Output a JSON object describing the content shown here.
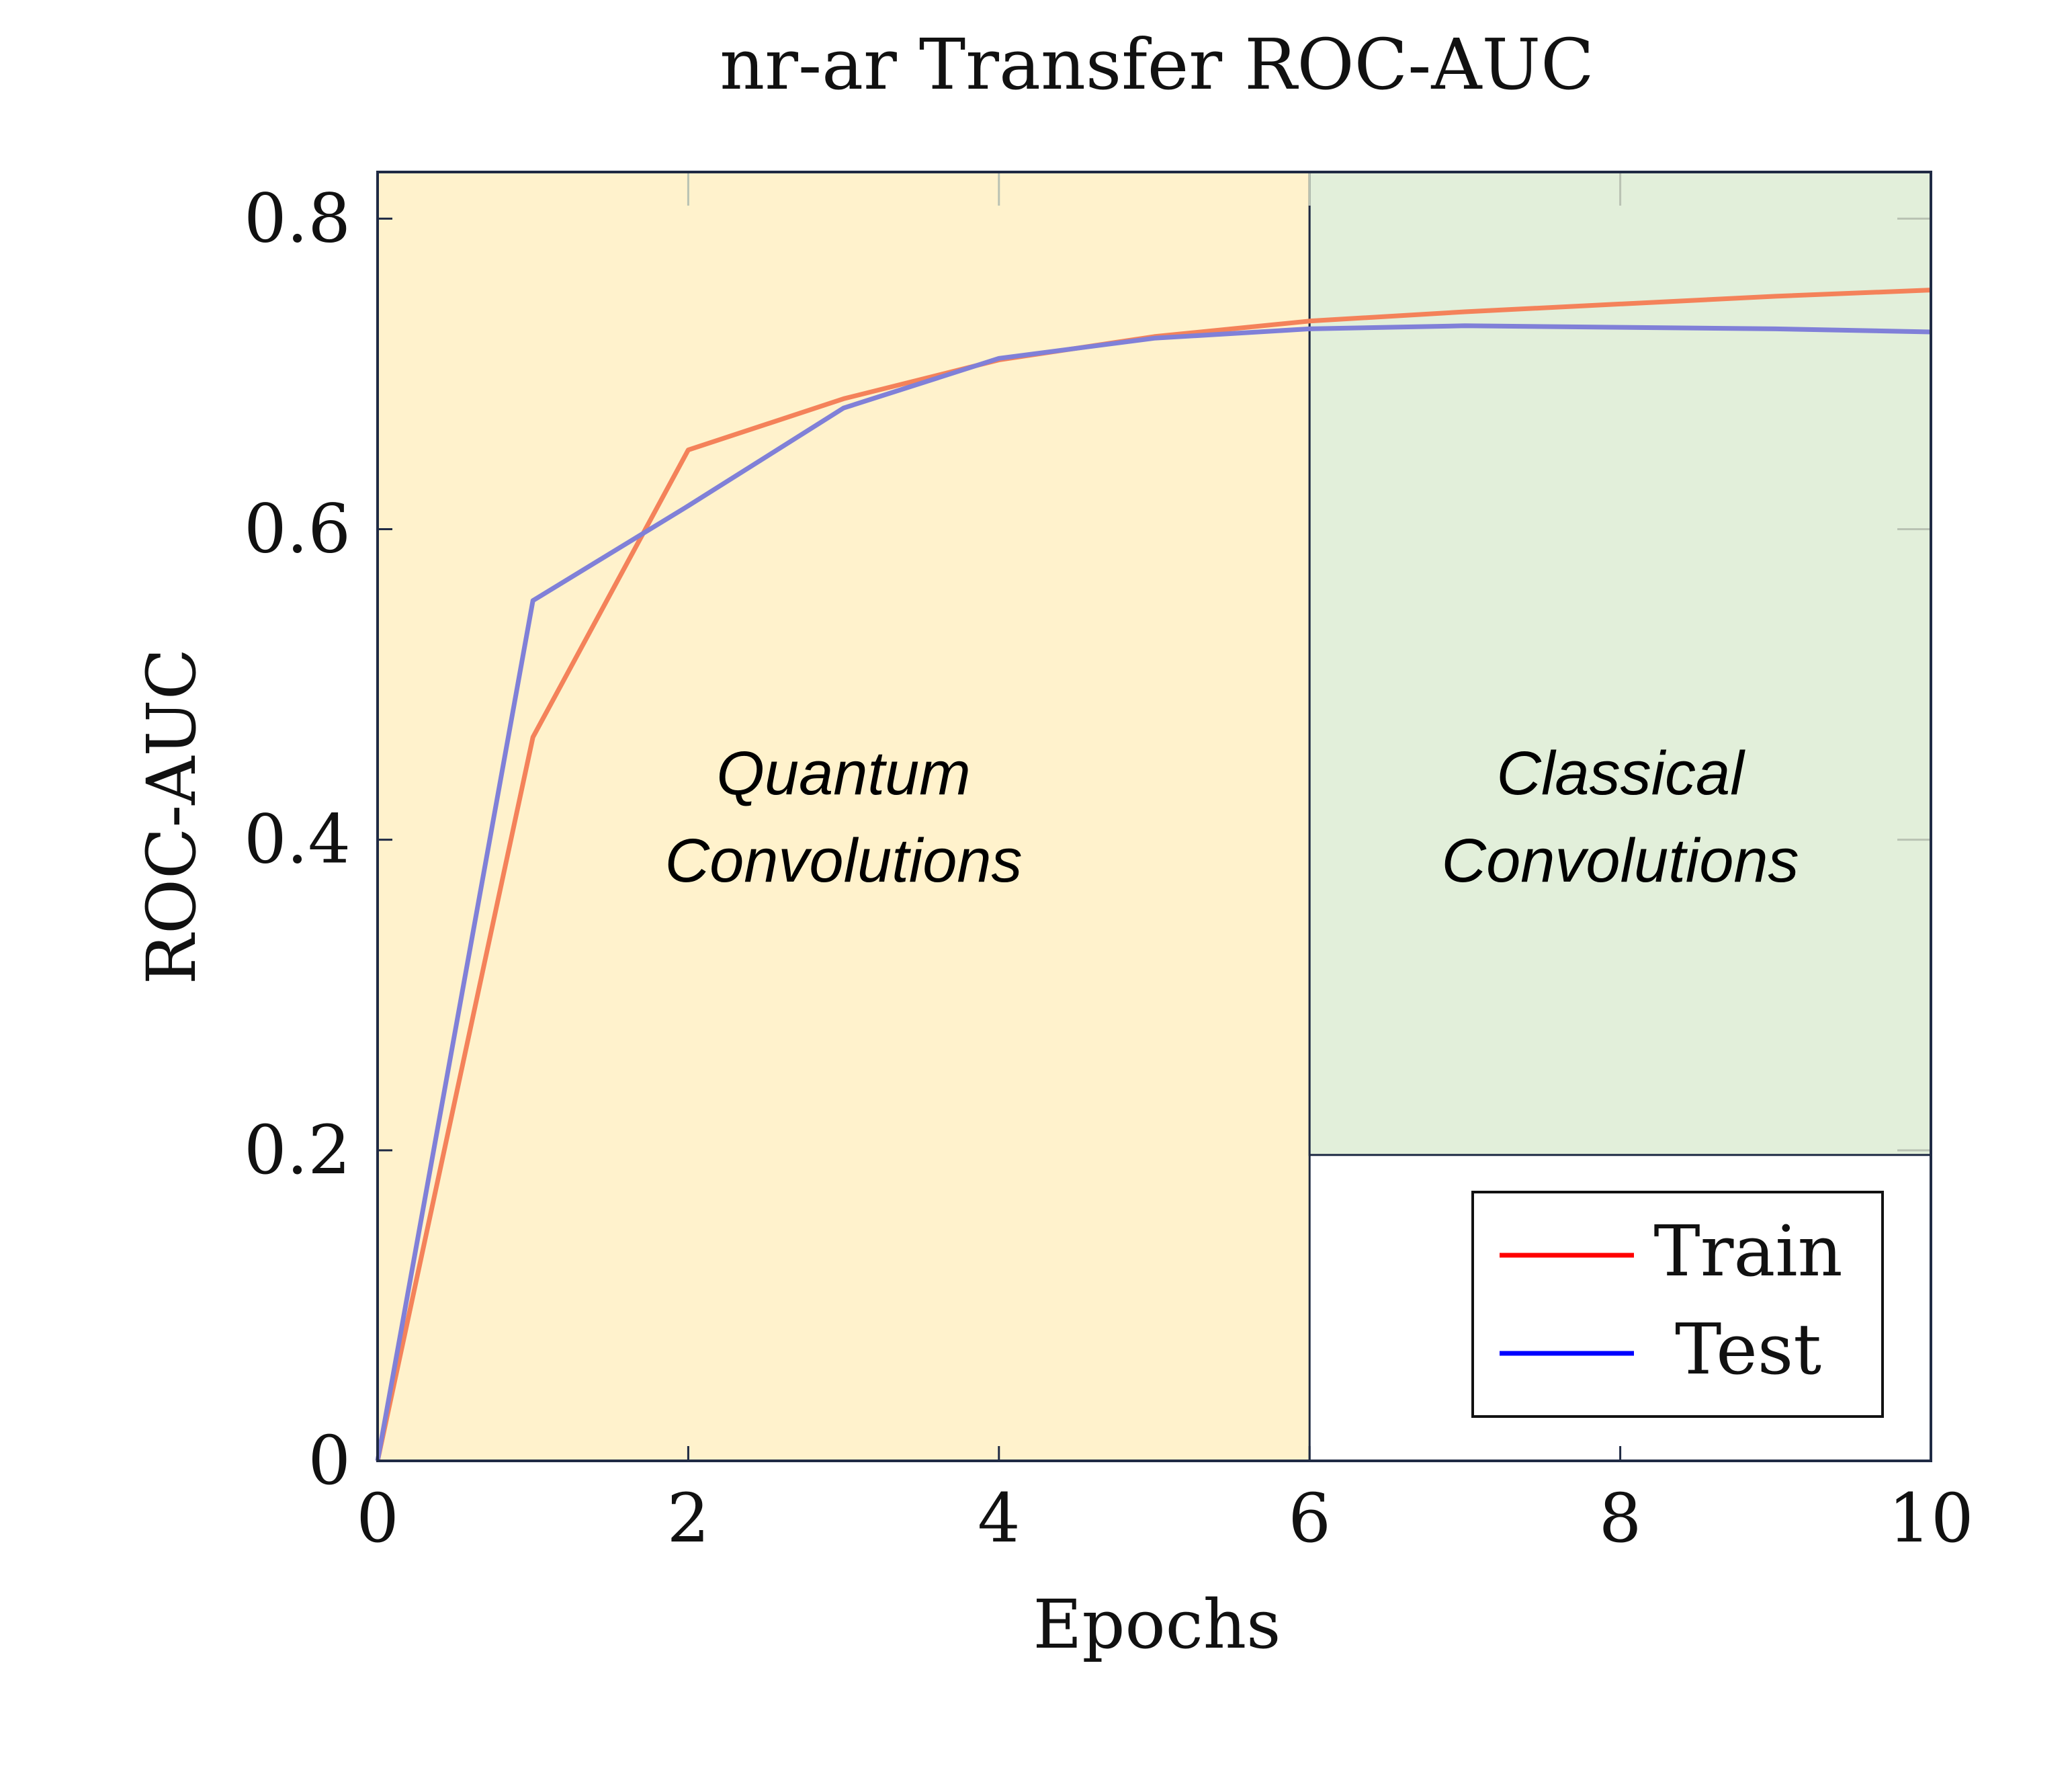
{
  "chart_data": {
    "type": "line",
    "title": "nr-ar Transfer ROC-AUC",
    "xlabel": "Epochs",
    "ylabel": "ROC-AUC",
    "xlim": [
      0,
      10
    ],
    "ylim": [
      0,
      0.83
    ],
    "x_ticks": [
      0,
      2,
      4,
      6,
      8,
      10
    ],
    "x_tick_labels": [
      "0",
      "2",
      "4",
      "6",
      "8",
      "10"
    ],
    "y_ticks": [
      0,
      0.2,
      0.4,
      0.6,
      0.8
    ],
    "y_tick_labels": [
      "0",
      "0.2",
      "0.4",
      "0.6",
      "0.8"
    ],
    "grid": true,
    "legend_position": "bottom-right",
    "regions": [
      {
        "x_from": 0,
        "x_to": 6,
        "y_from": 0,
        "y_to": 0.83,
        "label_line1": "Quantum",
        "label_line2": "Convolutions",
        "color": "#fff2cc"
      },
      {
        "x_from": 6,
        "x_to": 10,
        "y_from": 0.197,
        "y_to": 0.83,
        "label_line1": "Classical",
        "label_line2": "Convolutions",
        "color": "#e2efda"
      }
    ],
    "series": [
      {
        "name": "Train",
        "color": "#f4825a",
        "legend_color": "#ff0000",
        "x": [
          0,
          1,
          2,
          3,
          4,
          5,
          6,
          7,
          8,
          9,
          10
        ],
        "y": [
          0.0,
          0.466,
          0.651,
          0.684,
          0.709,
          0.724,
          0.734,
          0.74,
          0.745,
          0.75,
          0.754
        ]
      },
      {
        "name": "Test",
        "color": "#8080d8",
        "legend_color": "#0000ff",
        "x": [
          0,
          1,
          2,
          3,
          4,
          5,
          6,
          7,
          8,
          9,
          10
        ],
        "y": [
          0.0,
          0.554,
          0.615,
          0.678,
          0.71,
          0.723,
          0.729,
          0.731,
          0.73,
          0.729,
          0.727
        ]
      }
    ]
  }
}
